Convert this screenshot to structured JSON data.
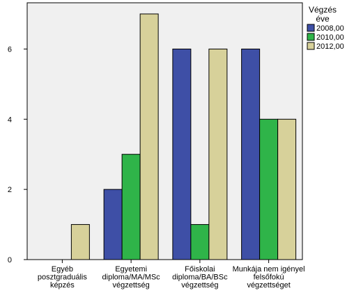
{
  "chart_data": {
    "type": "bar",
    "categories": [
      [
        "Egyéb",
        "posztgraduális",
        "képzés"
      ],
      [
        "Egyetemi",
        "diploma/MA/MSc",
        "végzettség"
      ],
      [
        "Főiskolai",
        "diploma/BA/BSc",
        "végzettség"
      ],
      [
        "Munkája nem igényel",
        "felsőfokú",
        "végzettséget"
      ]
    ],
    "series": [
      {
        "name": "2008,00",
        "color": "#3e4fa6",
        "values": [
          0,
          2,
          6,
          6
        ]
      },
      {
        "name": "2010,00",
        "color": "#2fb449",
        "values": [
          0,
          3,
          1,
          4
        ]
      },
      {
        "name": "2012,00",
        "color": "#d7d19a",
        "values": [
          1,
          7,
          6,
          4
        ]
      }
    ],
    "ylim": [
      0,
      7
    ],
    "yticks": [
      "0",
      "2",
      "4",
      "6"
    ],
    "legend": {
      "title": [
        "Végzés",
        "éve"
      ],
      "placement": "right"
    },
    "grid": false,
    "plot_background": "#f0f0f0"
  }
}
